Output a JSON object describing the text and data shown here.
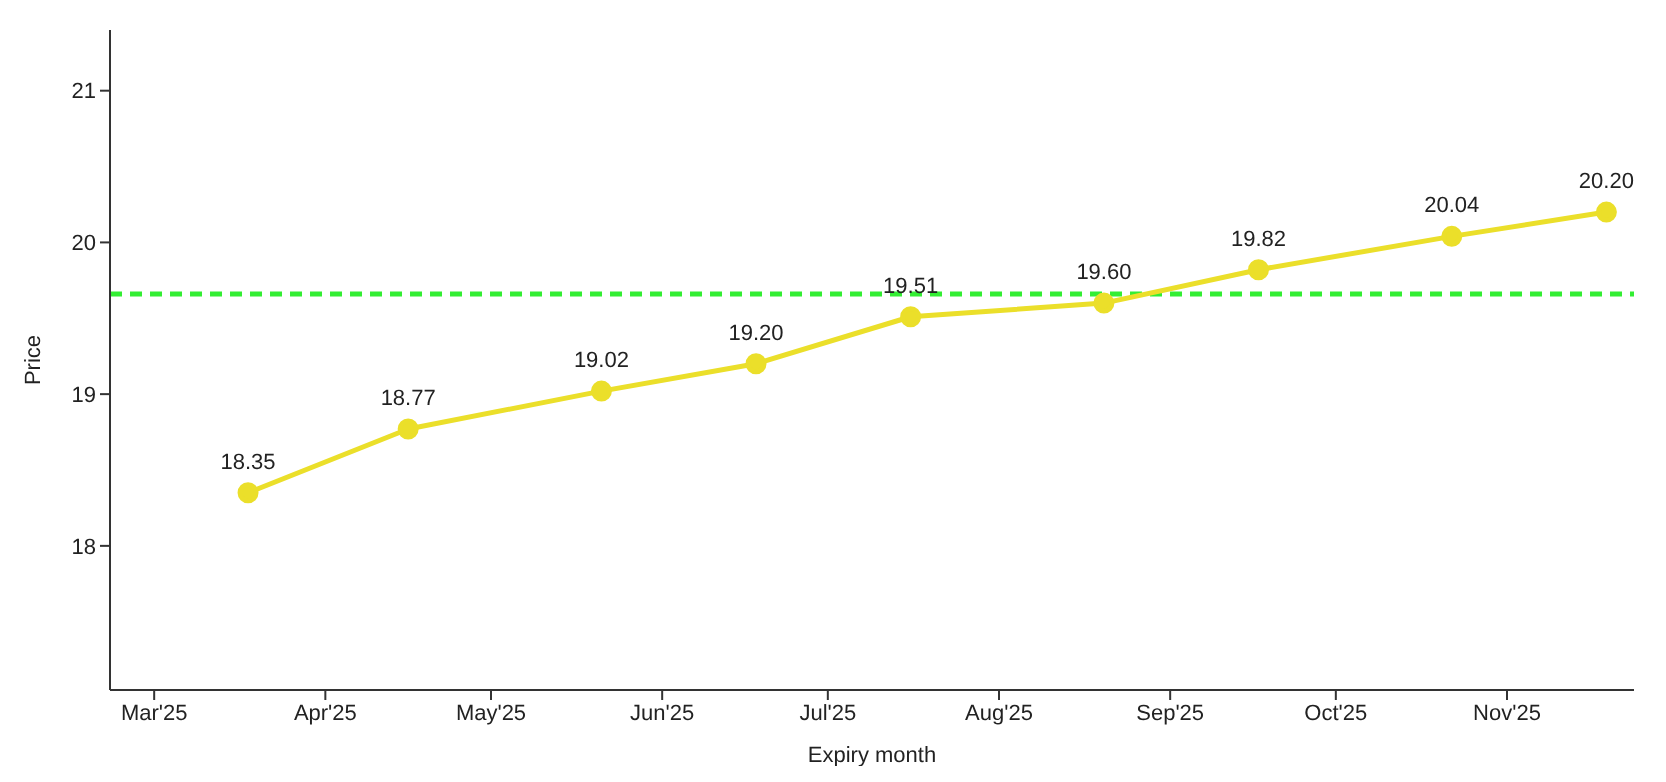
{
  "chart_data": {
    "type": "line",
    "xlabel": "Expiry month",
    "ylabel": "Price",
    "x": [
      "2025-03-18",
      "2025-04-16",
      "2025-05-21",
      "2025-06-18",
      "2025-07-16",
      "2025-08-20",
      "2025-09-17",
      "2025-10-22",
      "2025-11-19"
    ],
    "series": [
      {
        "color": "#ebdf2a",
        "values": [
          18.35,
          18.77,
          19.02,
          19.2,
          19.51,
          19.6,
          19.82,
          20.04,
          20.2
        ],
        "value_labels": [
          "18.35",
          "18.77",
          "19.02",
          "19.20",
          "19.51",
          "19.60",
          "19.82",
          "20.04",
          "20.20"
        ]
      }
    ],
    "xlim": [
      "2025-02-21",
      "2025-11-24"
    ],
    "xticks": [
      {
        "value": "2025-03-01",
        "label": "Mar'25"
      },
      {
        "value": "2025-04-01",
        "label": "Apr'25"
      },
      {
        "value": "2025-05-01",
        "label": "May'25"
      },
      {
        "value": "2025-06-01",
        "label": "Jun'25"
      },
      {
        "value": "2025-07-01",
        "label": "Jul'25"
      },
      {
        "value": "2025-08-01",
        "label": "Aug'25"
      },
      {
        "value": "2025-09-01",
        "label": "Sep'25"
      },
      {
        "value": "2025-10-01",
        "label": "Oct'25"
      },
      {
        "value": "2025-11-01",
        "label": "Nov'25"
      }
    ],
    "ylim": [
      17.05,
      21.4
    ],
    "yticks": [
      18,
      19,
      20,
      21
    ],
    "ref_lines": [
      {
        "axis": "y",
        "value": 19.66,
        "color": "#33ee33",
        "line_style": "dashed"
      }
    ],
    "grid": false,
    "legend": false,
    "marker": "circle",
    "line_style": "solid"
  }
}
